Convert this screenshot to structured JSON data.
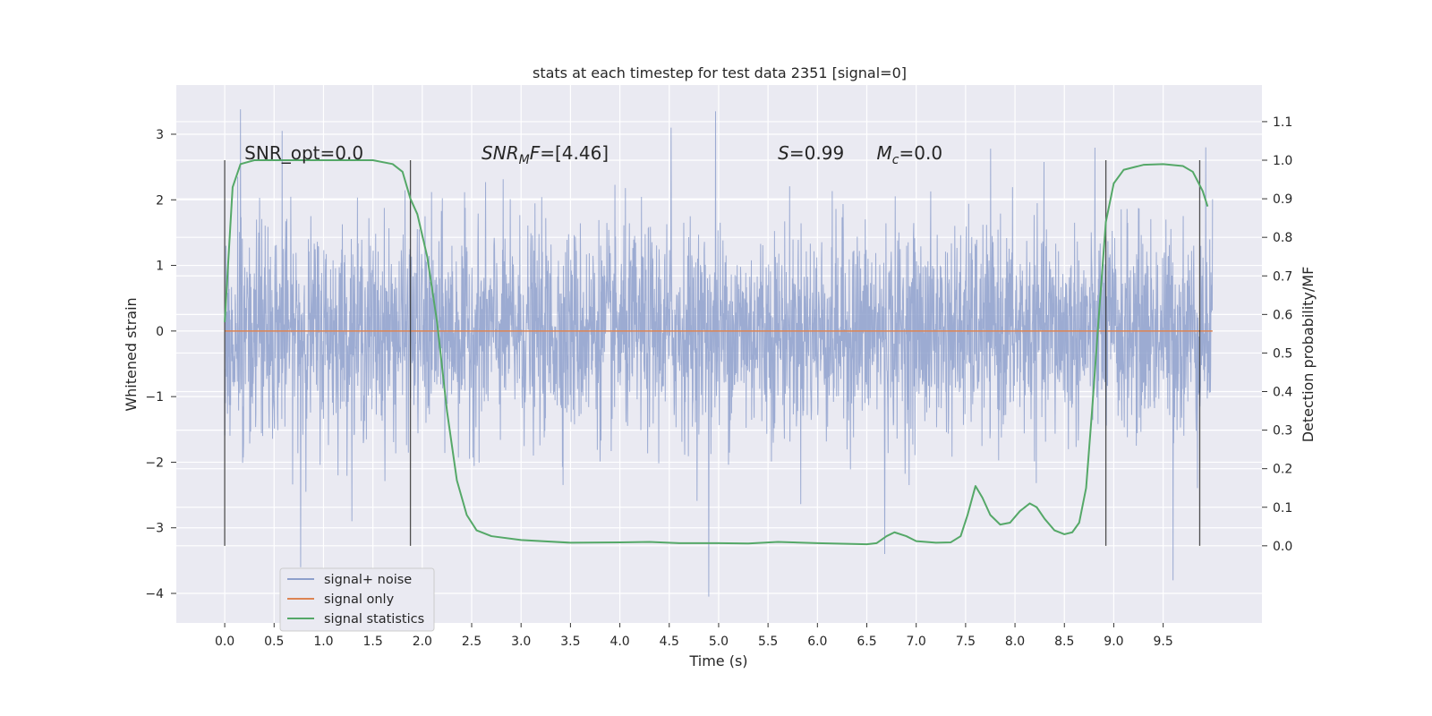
{
  "chart_data": {
    "type": "line",
    "title": "stats at each timestep for test data 2351 [signal=0]",
    "xlabel": "Time (s)",
    "ylabel": "Whitened strain",
    "y2label": "Detection probability/MF",
    "xlim": [
      -0.49,
      10.5
    ],
    "ylim": [
      -4.45,
      3.75
    ],
    "y2lim": [
      -0.2,
      1.195
    ],
    "xticks": [
      0.0,
      0.5,
      1.0,
      1.5,
      2.0,
      2.5,
      3.0,
      3.5,
      4.0,
      4.5,
      5.0,
      5.5,
      6.0,
      6.5,
      7.0,
      7.5,
      8.0,
      8.5,
      9.0,
      9.5
    ],
    "xtick_labels": [
      "0.0",
      "0.5",
      "1.0",
      "1.5",
      "2.0",
      "2.5",
      "3.0",
      "3.5",
      "4.0",
      "4.5",
      "5.0",
      "5.5",
      "6.0",
      "6.5",
      "7.0",
      "7.5",
      "8.0",
      "8.5",
      "9.0",
      "9.5"
    ],
    "yticks": [
      -4,
      -3,
      -2,
      -1,
      0,
      1,
      2,
      3
    ],
    "ytick_labels": [
      "−4",
      "−3",
      "−2",
      "−1",
      "0",
      "1",
      "2",
      "3"
    ],
    "y2ticks": [
      0.0,
      0.1,
      0.2,
      0.3,
      0.4,
      0.5,
      0.6,
      0.7,
      0.8,
      0.9,
      1.0,
      1.1
    ],
    "y2tick_labels": [
      "0.0",
      "0.1",
      "0.2",
      "0.3",
      "0.4",
      "0.5",
      "0.6",
      "0.7",
      "0.8",
      "0.9",
      "1.0",
      "1.1"
    ],
    "grid": true,
    "legend_position": "lower-left",
    "colors": {
      "background": "#eaeaf2",
      "grid": "#ffffff",
      "noise": "#8ea0cc",
      "signal_only": "#dd8452",
      "statistics": "#55a868",
      "markers": "#333333"
    },
    "series": [
      {
        "name": "signal+ noise",
        "axis": "left",
        "description_free": true,
        "x_range": [
          0.0,
          10.0
        ],
        "sample_rate_hz": 2048,
        "envelope_upper_typical": 1.5,
        "envelope_lower_typical": -1.5,
        "peaks": [
          {
            "x": 0.16,
            "y": 3.38
          },
          {
            "x": 0.58,
            "y": 3.05
          },
          {
            "x": 4.52,
            "y": 3.1
          },
          {
            "x": 4.97,
            "y": 3.35
          },
          {
            "x": 9.93,
            "y": 2.8
          },
          {
            "x": 0.77,
            "y": -3.6
          },
          {
            "x": 4.9,
            "y": -4.05
          },
          {
            "x": 9.6,
            "y": -3.8
          },
          {
            "x": 6.68,
            "y": -3.4
          }
        ]
      },
      {
        "name": "signal only",
        "axis": "left",
        "x": [
          0.0,
          10.0
        ],
        "y": [
          0.0,
          0.0
        ]
      },
      {
        "name": "signal statistics",
        "axis": "right",
        "x": [
          0.0,
          0.08,
          0.16,
          0.3,
          0.5,
          1.0,
          1.5,
          1.7,
          1.8,
          1.88,
          1.95,
          2.05,
          2.15,
          2.25,
          2.35,
          2.45,
          2.55,
          2.7,
          3.0,
          3.5,
          4.0,
          4.3,
          4.6,
          5.0,
          5.3,
          5.6,
          6.0,
          6.5,
          6.6,
          6.7,
          6.78,
          6.9,
          7.0,
          7.2,
          7.35,
          7.45,
          7.52,
          7.6,
          7.67,
          7.75,
          7.85,
          7.95,
          8.05,
          8.15,
          8.22,
          8.3,
          8.4,
          8.5,
          8.58,
          8.65,
          8.72,
          8.78,
          8.85,
          8.92,
          9.0,
          9.1,
          9.3,
          9.5,
          9.7,
          9.8,
          9.9,
          9.95
        ],
        "y": [
          0.58,
          0.93,
          0.99,
          1.0,
          1.0,
          1.0,
          1.0,
          0.99,
          0.97,
          0.9,
          0.86,
          0.75,
          0.58,
          0.35,
          0.17,
          0.08,
          0.04,
          0.025,
          0.015,
          0.008,
          0.009,
          0.01,
          0.007,
          0.007,
          0.006,
          0.01,
          0.007,
          0.004,
          0.007,
          0.025,
          0.035,
          0.025,
          0.012,
          0.008,
          0.009,
          0.025,
          0.08,
          0.155,
          0.125,
          0.08,
          0.055,
          0.06,
          0.09,
          0.11,
          0.1,
          0.07,
          0.04,
          0.03,
          0.035,
          0.06,
          0.15,
          0.35,
          0.6,
          0.84,
          0.94,
          0.975,
          0.988,
          0.99,
          0.985,
          0.97,
          0.92,
          0.88
        ]
      }
    ],
    "vertical_lines_x": [
      0.0,
      1.88,
      8.92,
      9.87
    ],
    "annotations": [
      {
        "id": "snr-opt",
        "x": 0.2,
        "y_axis2": 1.0,
        "parts": [
          {
            "text": "SNR_opt=0.0",
            "italic": false
          }
        ]
      },
      {
        "id": "snr-mf",
        "x": 2.6,
        "y_axis2": 1.0,
        "parts": [
          {
            "text": "SNR",
            "italic": true
          },
          {
            "text": "M",
            "italic": true,
            "sub": true
          },
          {
            "text": "F",
            "italic": true
          },
          {
            "text": "=[4.46]",
            "italic": false
          }
        ]
      },
      {
        "id": "s-stat",
        "x": 5.6,
        "y_axis2": 1.0,
        "parts": [
          {
            "text": "S",
            "italic": true
          },
          {
            "text": "=0.99",
            "italic": false
          }
        ]
      },
      {
        "id": "mc-stat",
        "x": 6.6,
        "y_axis2": 1.0,
        "parts": [
          {
            "text": "M",
            "italic": true
          },
          {
            "text": "c",
            "italic": true,
            "sub": true
          },
          {
            "text": "=0.0",
            "italic": false
          }
        ]
      }
    ]
  }
}
